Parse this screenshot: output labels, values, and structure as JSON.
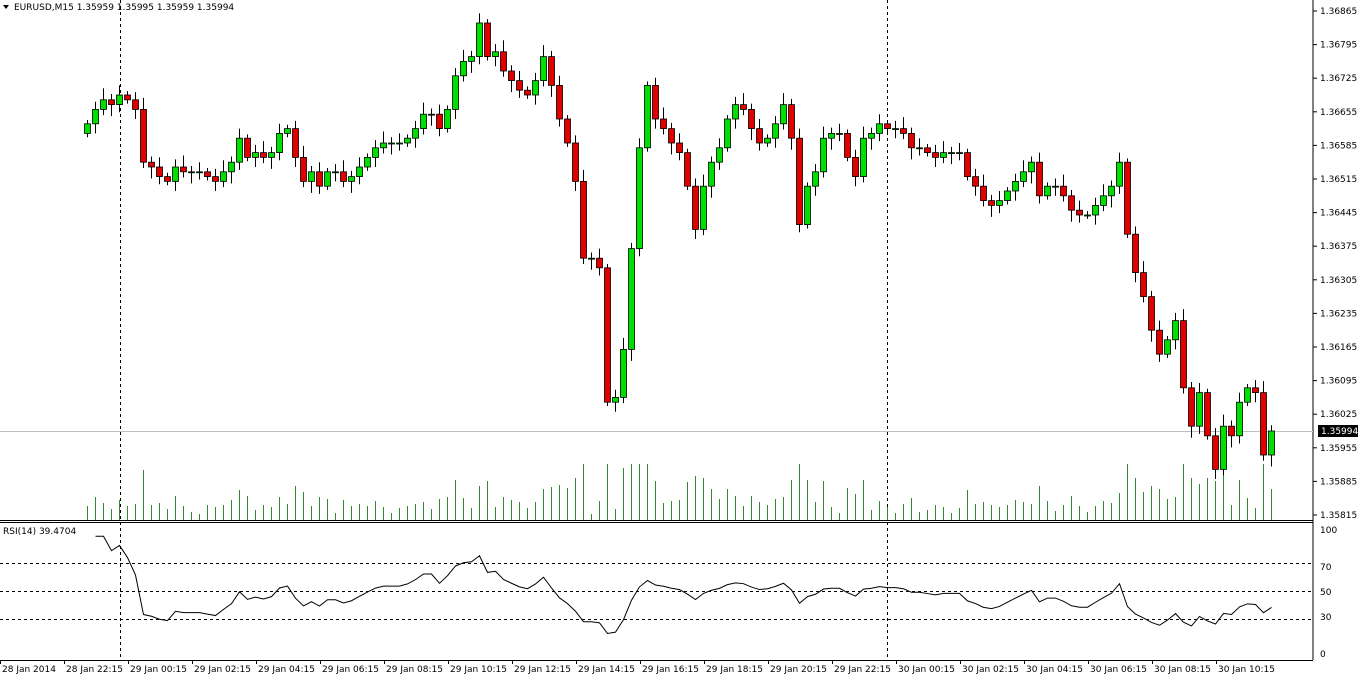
{
  "header": {
    "symbol_line": "EURUSD,M15  1.35959 1.35995 1.35959 1.35994",
    "menu_arrow_icon": "triangle-down-icon"
  },
  "rsi": {
    "label": "RSI(14) 39.4704",
    "levels": [
      "100",
      "70",
      "50",
      "30",
      "0"
    ]
  },
  "colors": {
    "bull": "#00e000",
    "bear": "#e00000",
    "volume": "#2e8b2e",
    "rsi_line": "#000000",
    "axis": "#000000",
    "separator": "#000000"
  },
  "chart_data": {
    "type": "candlestick",
    "symbol": "EURUSD",
    "timeframe": "M15",
    "last_price": "1.35994",
    "y_ticks": [
      "1.36865",
      "1.36795",
      "1.36725",
      "1.36655",
      "1.36585",
      "1.36515",
      "1.36445",
      "1.36375",
      "1.36305",
      "1.36235",
      "1.36165",
      "1.36095",
      "1.36025",
      "1.35955",
      "1.35885",
      "1.35815"
    ],
    "ylim": [
      1.35815,
      1.36865
    ],
    "x_ticks": [
      "28 Jan 2014",
      "28 Jan 22:15",
      "29 Jan 00:15",
      "29 Jan 02:15",
      "29 Jan 04:15",
      "29 Jan 06:15",
      "29 Jan 08:15",
      "29 Jan 10:15",
      "29 Jan 12:15",
      "29 Jan 14:15",
      "29 Jan 16:15",
      "29 Jan 18:15",
      "29 Jan 20:15",
      "29 Jan 22:15",
      "30 Jan 00:15",
      "30 Jan 02:15",
      "30 Jan 04:15",
      "30 Jan 06:15",
      "30 Jan 08:15",
      "30 Jan 10:15"
    ],
    "closes": [
      1.3663,
      1.3666,
      1.3668,
      1.3667,
      1.3669,
      1.3668,
      1.3666,
      1.3655,
      1.3654,
      1.3652,
      1.3651,
      1.3654,
      1.3653,
      1.3653,
      1.3653,
      1.3652,
      1.3651,
      1.3653,
      1.3655,
      1.366,
      1.3656,
      1.3657,
      1.3656,
      1.3657,
      1.3661,
      1.3662,
      1.3656,
      1.3651,
      1.3653,
      1.365,
      1.3653,
      1.3653,
      1.3651,
      1.3652,
      1.3654,
      1.3656,
      1.3658,
      1.3659,
      1.3659,
      1.3659,
      1.366,
      1.3662,
      1.3665,
      1.3665,
      1.3662,
      1.3666,
      1.3673,
      1.3676,
      1.3677,
      1.3684,
      1.3677,
      1.3678,
      1.3674,
      1.3672,
      1.367,
      1.3669,
      1.3672,
      1.3677,
      1.3671,
      1.3664,
      1.3659,
      1.3651,
      1.3635,
      1.3635,
      1.3633,
      1.3605,
      1.3606,
      1.3616,
      1.3637,
      1.3658,
      1.3671,
      1.3664,
      1.3662,
      1.3659,
      1.3657,
      1.365,
      1.3641,
      1.365,
      1.3655,
      1.3658,
      1.3664,
      1.3667,
      1.3666,
      1.3662,
      1.3659,
      1.366,
      1.3663,
      1.3667,
      1.366,
      1.3642,
      1.365,
      1.3653,
      1.366,
      1.3661,
      1.3661,
      1.3656,
      1.3652,
      1.366,
      1.3661,
      1.3663,
      1.3662,
      1.3662,
      1.3661,
      1.3658,
      1.3658,
      1.3657,
      1.3656,
      1.3657,
      1.3657,
      1.3657,
      1.3652,
      1.365,
      1.3647,
      1.3646,
      1.3647,
      1.3649,
      1.3651,
      1.3653,
      1.3655,
      1.3648,
      1.365,
      1.365,
      1.3648,
      1.3645,
      1.3644,
      1.3644,
      1.3646,
      1.3648,
      1.365,
      1.3655,
      1.364,
      1.3632,
      1.3627,
      1.362,
      1.3615,
      1.3618,
      1.3622,
      1.3608,
      1.36,
      1.3607,
      1.3598,
      1.3591,
      1.36,
      1.3598,
      1.3605,
      1.3608,
      1.3607,
      1.3594,
      1.3599
    ]
  }
}
